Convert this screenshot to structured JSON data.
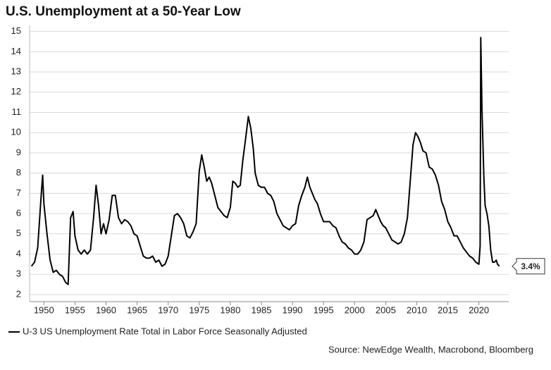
{
  "chart_data": {
    "type": "line",
    "title": "U.S. Unemployment at a 50-Year Low",
    "source": "Source: NewEdge Wealth, Macrobond, Bloomberg",
    "annotation": "3.4%",
    "x": [
      1948.0,
      1948.5,
      1949.0,
      1949.5,
      1949.8,
      1950.0,
      1950.5,
      1951.0,
      1951.5,
      1952.0,
      1952.5,
      1953.0,
      1953.5,
      1953.9,
      1954.3,
      1954.7,
      1955.0,
      1955.5,
      1956.0,
      1956.5,
      1957.0,
      1957.5,
      1958.0,
      1958.4,
      1958.8,
      1959.2,
      1959.6,
      1960.0,
      1960.5,
      1961.0,
      1961.5,
      1962.0,
      1962.5,
      1963.0,
      1963.5,
      1964.0,
      1964.5,
      1965.0,
      1965.5,
      1966.0,
      1966.5,
      1967.0,
      1967.5,
      1968.0,
      1968.5,
      1969.0,
      1969.5,
      1970.0,
      1970.5,
      1971.0,
      1971.5,
      1972.0,
      1972.5,
      1973.0,
      1973.5,
      1974.0,
      1974.5,
      1975.0,
      1975.4,
      1975.8,
      1976.2,
      1976.6,
      1977.0,
      1977.5,
      1978.0,
      1978.5,
      1979.0,
      1979.5,
      1980.0,
      1980.4,
      1980.8,
      1981.2,
      1981.6,
      1982.0,
      1982.5,
      1982.9,
      1983.3,
      1983.7,
      1984.0,
      1984.5,
      1985.0,
      1985.5,
      1986.0,
      1986.5,
      1987.0,
      1987.5,
      1988.0,
      1988.5,
      1989.0,
      1989.5,
      1990.0,
      1990.5,
      1991.0,
      1991.5,
      1992.0,
      1992.4,
      1992.8,
      1993.2,
      1993.6,
      1994.0,
      1994.5,
      1995.0,
      1995.5,
      1996.0,
      1996.5,
      1997.0,
      1997.5,
      1998.0,
      1998.5,
      1999.0,
      1999.5,
      2000.0,
      2000.5,
      2001.0,
      2001.5,
      2002.0,
      2002.5,
      2003.0,
      2003.4,
      2003.8,
      2004.2,
      2004.6,
      2005.0,
      2005.5,
      2006.0,
      2006.5,
      2007.0,
      2007.5,
      2008.0,
      2008.5,
      2009.0,
      2009.4,
      2009.8,
      2010.2,
      2010.6,
      2011.0,
      2011.5,
      2012.0,
      2012.5,
      2013.0,
      2013.5,
      2014.0,
      2014.5,
      2015.0,
      2015.5,
      2016.0,
      2016.5,
      2017.0,
      2017.5,
      2018.0,
      2018.5,
      2019.0,
      2019.5,
      2020.0,
      2020.2,
      2020.3,
      2020.5,
      2020.8,
      2021.0,
      2021.3,
      2021.6,
      2021.9,
      2022.2,
      2022.5,
      2022.8,
      2023.0,
      2023.3
    ],
    "series": [
      {
        "name": "U-3 US Unemployment Rate Total in Labor Force Seasonally Adjusted",
        "color": "#000000",
        "values": [
          3.4,
          3.6,
          4.3,
          6.6,
          7.9,
          6.5,
          5.0,
          3.7,
          3.1,
          3.2,
          3.0,
          2.9,
          2.6,
          2.5,
          5.8,
          6.1,
          4.9,
          4.2,
          4.0,
          4.2,
          4.0,
          4.2,
          5.8,
          7.4,
          6.4,
          5.0,
          5.5,
          5.0,
          5.7,
          6.9,
          6.9,
          5.8,
          5.5,
          5.7,
          5.6,
          5.4,
          5.0,
          4.9,
          4.4,
          3.9,
          3.8,
          3.8,
          3.9,
          3.6,
          3.7,
          3.4,
          3.5,
          3.9,
          4.9,
          5.9,
          6.0,
          5.8,
          5.5,
          4.9,
          4.8,
          5.1,
          5.5,
          8.1,
          8.9,
          8.3,
          7.6,
          7.8,
          7.5,
          6.9,
          6.3,
          6.1,
          5.9,
          5.8,
          6.3,
          7.6,
          7.5,
          7.3,
          7.4,
          8.6,
          9.8,
          10.8,
          10.2,
          9.2,
          8.0,
          7.4,
          7.3,
          7.3,
          7.0,
          6.9,
          6.6,
          6.0,
          5.7,
          5.4,
          5.3,
          5.2,
          5.4,
          5.5,
          6.4,
          6.9,
          7.3,
          7.8,
          7.3,
          7.0,
          6.7,
          6.5,
          6.0,
          5.6,
          5.6,
          5.6,
          5.4,
          5.3,
          4.9,
          4.6,
          4.5,
          4.3,
          4.2,
          4.0,
          4.0,
          4.2,
          4.6,
          5.7,
          5.8,
          5.9,
          6.2,
          5.9,
          5.6,
          5.4,
          5.3,
          5.0,
          4.7,
          4.6,
          4.5,
          4.6,
          5.0,
          5.8,
          7.8,
          9.4,
          10.0,
          9.8,
          9.5,
          9.1,
          9.0,
          8.3,
          8.2,
          7.9,
          7.4,
          6.6,
          6.2,
          5.6,
          5.3,
          4.9,
          4.9,
          4.6,
          4.3,
          4.1,
          3.9,
          3.8,
          3.6,
          3.5,
          4.4,
          14.7,
          11.1,
          7.8,
          6.4,
          6.0,
          5.4,
          4.2,
          3.6,
          3.6,
          3.7,
          3.5,
          3.4
        ]
      }
    ],
    "xlim": [
      1947.7,
      2024.8
    ],
    "xticks": [
      1950,
      1955,
      1960,
      1965,
      1970,
      1975,
      1980,
      1985,
      1990,
      1995,
      2000,
      2005,
      2010,
      2015,
      2020
    ],
    "ylim": [
      1.65,
      15.3
    ],
    "yticks": [
      2,
      3,
      4,
      5,
      6,
      7,
      8,
      9,
      10,
      11,
      12,
      13,
      14,
      15
    ],
    "grid": true
  }
}
